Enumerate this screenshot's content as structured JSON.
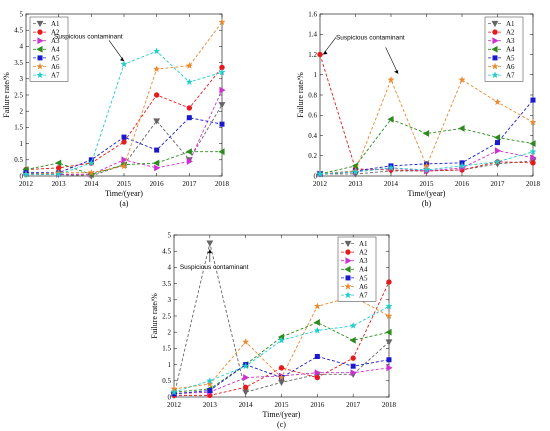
{
  "colors": {
    "A1": "#666666",
    "A2": "#e41a1c",
    "A3": "#cc33cc",
    "A4": "#2e8b1f",
    "A5": "#1a1acc",
    "A6": "#e8892e",
    "A7": "#22cccc"
  },
  "chart_data": [
    {
      "type": "line",
      "caption": "(a)",
      "xlabel": "Time/(year)",
      "ylabel": "Failure rate/%",
      "x": [
        2012,
        2013,
        2014,
        2015,
        2016,
        2017,
        2018
      ],
      "xlim": [
        2012,
        2018
      ],
      "ylim": [
        0,
        5
      ],
      "yticks": [
        0,
        0.5,
        1,
        1.5,
        2,
        2.5,
        3,
        3.5,
        4,
        4.5,
        5
      ],
      "ytick_labels": [
        "0",
        "0.5",
        "1",
        "1.5",
        "2",
        "2.5",
        "3",
        "3.5",
        "4",
        "4.5",
        "5"
      ],
      "legend_position": "top-left",
      "annotation": {
        "text": "Suspicious contaminant",
        "x": 2015,
        "y": 3.45
      },
      "series": [
        {
          "name": "A1",
          "marker": "tri-down",
          "values": [
            0.05,
            0.05,
            0.0,
            0.35,
            1.7,
            0.5,
            2.2
          ]
        },
        {
          "name": "A2",
          "marker": "circle",
          "values": [
            0.2,
            0.25,
            0.4,
            1.05,
            2.5,
            2.1,
            3.35
          ]
        },
        {
          "name": "A3",
          "marker": "tri-right",
          "values": [
            0.1,
            0.05,
            0.05,
            0.5,
            0.25,
            0.45,
            2.65
          ]
        },
        {
          "name": "A4",
          "marker": "tri-left",
          "values": [
            0.2,
            0.4,
            0.05,
            0.35,
            0.4,
            0.75,
            0.75
          ]
        },
        {
          "name": "A5",
          "marker": "square",
          "values": [
            0.1,
            0.1,
            0.5,
            1.2,
            0.8,
            1.8,
            1.6
          ]
        },
        {
          "name": "A6",
          "marker": "star",
          "values": [
            0.05,
            0.1,
            0.1,
            0.3,
            3.3,
            3.4,
            4.75
          ]
        },
        {
          "name": "A7",
          "marker": "star",
          "values": [
            0.05,
            0.05,
            0.4,
            3.45,
            3.85,
            2.9,
            3.2
          ]
        }
      ]
    },
    {
      "type": "line",
      "caption": "(b)",
      "xlabel": "Time/(year)",
      "ylabel": "Failure rate/%",
      "x": [
        2012,
        2013,
        2014,
        2015,
        2016,
        2017,
        2018
      ],
      "xlim": [
        2012,
        2018
      ],
      "ylim": [
        0,
        1.6
      ],
      "yticks": [
        0,
        0.2,
        0.4,
        0.6,
        0.8,
        1,
        1.2,
        1.4,
        1.6
      ],
      "ytick_labels": [
        "0",
        "0.2",
        "0.4",
        "0.6",
        "0.8",
        "1",
        "1.2",
        "1.4",
        "1.6"
      ],
      "legend_position": "top-right",
      "annotation": {
        "text": "Suspicious contaminant",
        "x": 2012,
        "y": 1.2,
        "arrow_target": {
          "x": 2014.2,
          "y": 0.98
        }
      },
      "series": [
        {
          "name": "A1",
          "marker": "tri-down",
          "values": [
            0.02,
            0.02,
            0.05,
            0.05,
            0.06,
            0.12,
            0.15
          ]
        },
        {
          "name": "A2",
          "marker": "circle",
          "values": [
            1.2,
            0.07,
            0.06,
            0.05,
            0.06,
            0.14,
            0.13
          ]
        },
        {
          "name": "A3",
          "marker": "tri-right",
          "values": [
            0.02,
            0.04,
            0.08,
            0.05,
            0.08,
            0.25,
            0.18
          ]
        },
        {
          "name": "A4",
          "marker": "tri-left",
          "values": [
            0.02,
            0.1,
            0.56,
            0.42,
            0.47,
            0.38,
            0.32
          ]
        },
        {
          "name": "A5",
          "marker": "square",
          "values": [
            0.02,
            0.05,
            0.1,
            0.12,
            0.13,
            0.33,
            0.75
          ]
        },
        {
          "name": "A6",
          "marker": "star",
          "values": [
            0.02,
            0.05,
            0.95,
            0.1,
            0.95,
            0.73,
            0.53
          ]
        },
        {
          "name": "A7",
          "marker": "star",
          "values": [
            0.02,
            0.04,
            0.08,
            0.06,
            0.1,
            0.14,
            0.24
          ]
        }
      ]
    },
    {
      "type": "line",
      "caption": "(c)",
      "xlabel": "Time/(year)",
      "ylabel": "Failure rate/%",
      "x": [
        2012,
        2013,
        2014,
        2015,
        2016,
        2017,
        2018
      ],
      "xlim": [
        2012,
        2018
      ],
      "ylim": [
        0,
        5
      ],
      "yticks": [
        0,
        0.5,
        1,
        1.5,
        2,
        2.5,
        3,
        3.5,
        4,
        4.5,
        5
      ],
      "ytick_labels": [
        "0",
        "0.5",
        "1",
        "1.5",
        "2",
        "2.5",
        "3",
        "3.5",
        "4",
        "4.5",
        "5"
      ],
      "legend_position": "top-right",
      "annotation": {
        "text": "Suspicious contaminant",
        "x": 2013,
        "y": 4.75
      },
      "series": [
        {
          "name": "A1",
          "marker": "tri-down",
          "values": [
            0.05,
            4.75,
            0.15,
            0.45,
            0.7,
            0.7,
            1.7
          ]
        },
        {
          "name": "A2",
          "marker": "circle",
          "values": [
            0.05,
            0.05,
            0.3,
            0.9,
            0.6,
            1.2,
            3.55
          ]
        },
        {
          "name": "A3",
          "marker": "tri-right",
          "values": [
            0.1,
            0.15,
            0.6,
            0.65,
            0.75,
            0.75,
            0.9
          ]
        },
        {
          "name": "A4",
          "marker": "tri-left",
          "values": [
            0.15,
            0.25,
            1.0,
            1.85,
            2.3,
            1.75,
            2.0
          ]
        },
        {
          "name": "A5",
          "marker": "square",
          "values": [
            0.1,
            0.2,
            1.0,
            0.6,
            1.25,
            0.95,
            1.15
          ]
        },
        {
          "name": "A6",
          "marker": "star",
          "values": [
            0.25,
            0.4,
            1.7,
            0.6,
            2.8,
            3.1,
            2.5
          ]
        },
        {
          "name": "A7",
          "marker": "star",
          "values": [
            0.15,
            0.5,
            0.95,
            1.75,
            2.05,
            2.2,
            2.8
          ]
        }
      ]
    }
  ]
}
